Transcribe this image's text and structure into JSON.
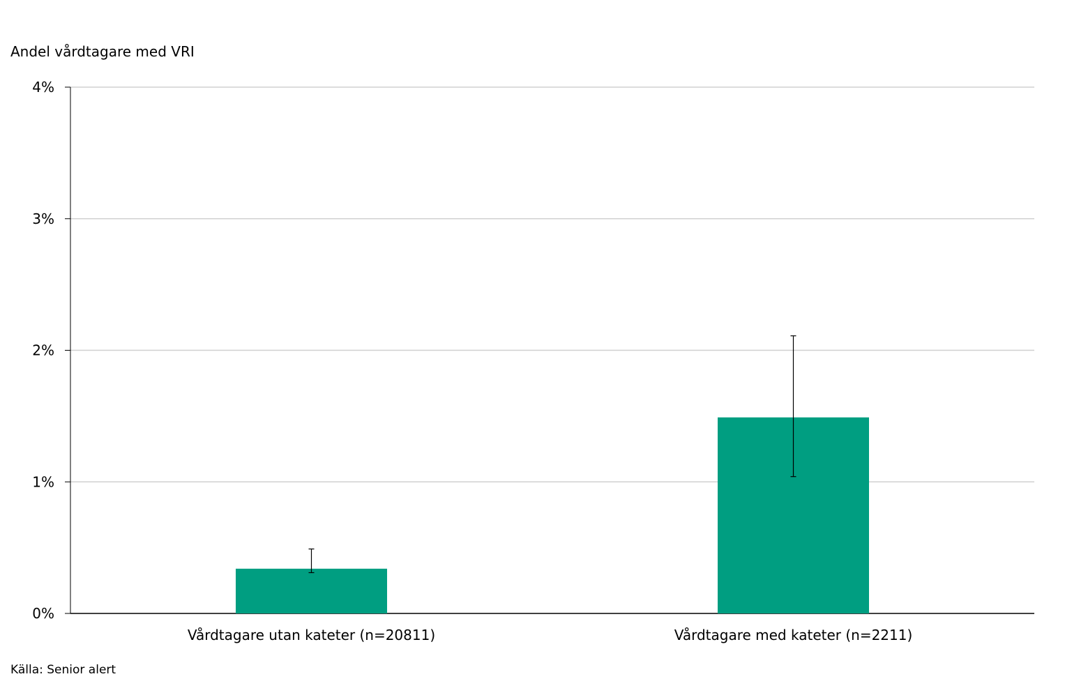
{
  "chart_data": {
    "type": "bar",
    "title": "",
    "ylabel": "Andel vårdtagare med VRI",
    "xlabel": "",
    "categories": [
      "Vårdtagare utan kateter (n=20811)",
      "Vårdtagare med kateter (n=2211)"
    ],
    "values": [
      0.34,
      1.49
    ],
    "error_low": [
      0.31,
      1.04
    ],
    "error_high": [
      0.49,
      2.11
    ],
    "ylim": [
      0,
      4
    ],
    "yticks": [
      0,
      1,
      2,
      3,
      4
    ],
    "ytick_labels": [
      "0%",
      "1%",
      "2%",
      "3%",
      "4%"
    ],
    "grid": true,
    "legend": "none",
    "bar_color": "#009E81"
  },
  "source": "Källa: Senior alert"
}
